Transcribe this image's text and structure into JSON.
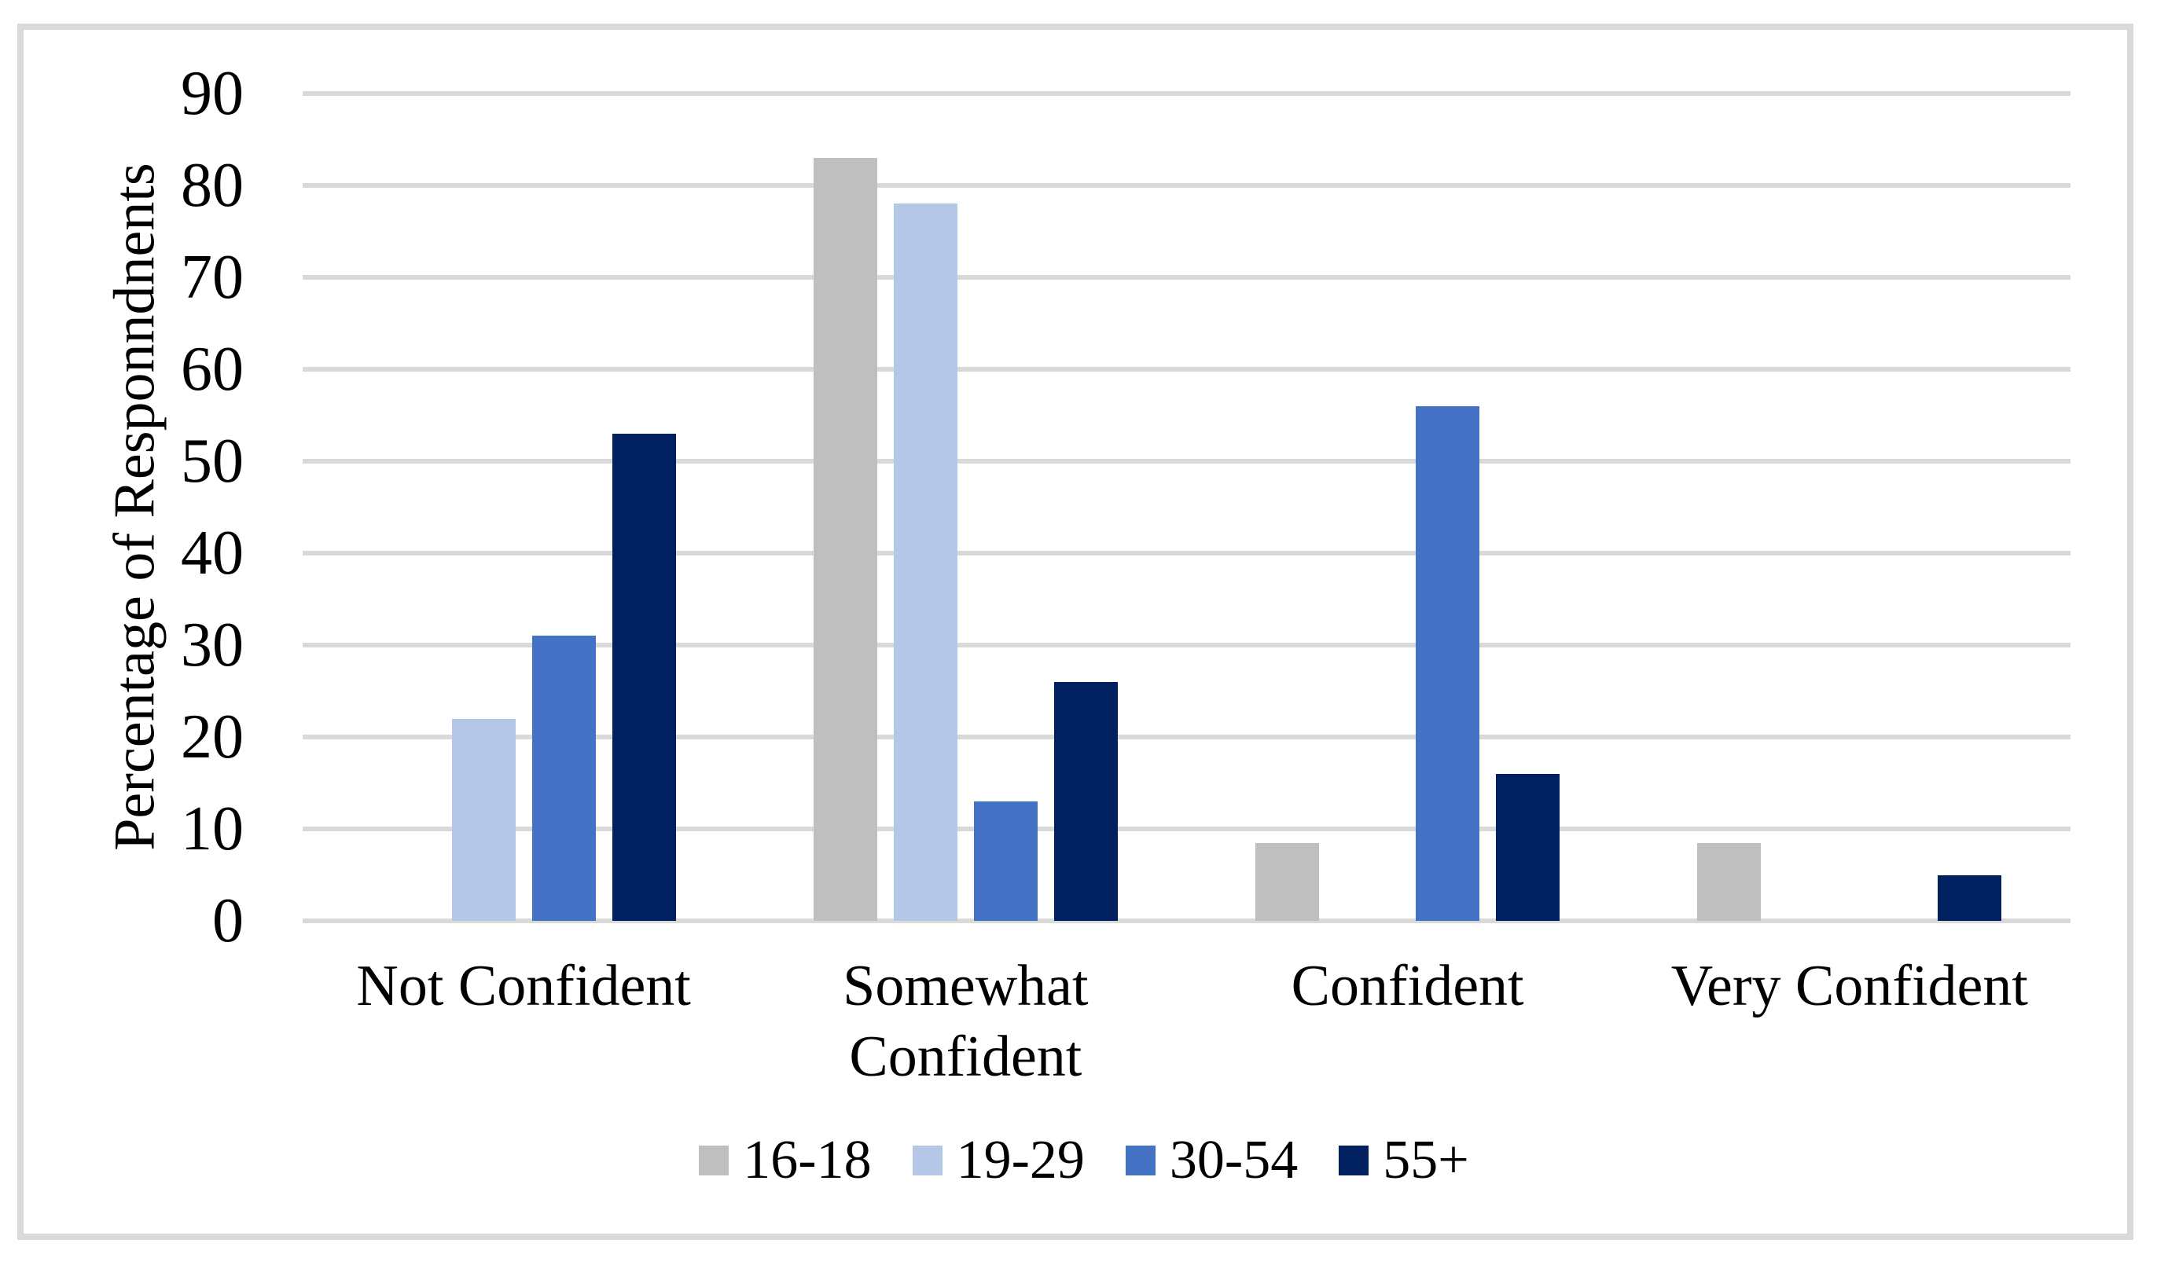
{
  "chart_data": {
    "type": "bar",
    "title": "",
    "ylabel": "Percentage of Responndnents",
    "xlabel": "",
    "categories": [
      "Not Confident",
      "Somewhat Confident",
      "Confident",
      "Very Confident"
    ],
    "series": [
      {
        "name": "16-18",
        "color": "#bfbfbf",
        "values": [
          0,
          83,
          8.5,
          8.5
        ]
      },
      {
        "name": "19-29",
        "color": "#b4c7e7",
        "values": [
          22,
          78,
          0,
          0
        ]
      },
      {
        "name": "30-54",
        "color": "#4472c4",
        "values": [
          31,
          13,
          56,
          0
        ]
      },
      {
        "name": "55+",
        "color": "#002060",
        "values": [
          53,
          26,
          16,
          5
        ]
      }
    ],
    "ylim": [
      0,
      90
    ],
    "ytick_step": 10,
    "grid": true,
    "legend_position": "bottom",
    "gridline_color": "#d9d9d9",
    "frame_border_color": "#d9d9d9",
    "background_color": "#ffffff",
    "text_color": "#000000"
  }
}
